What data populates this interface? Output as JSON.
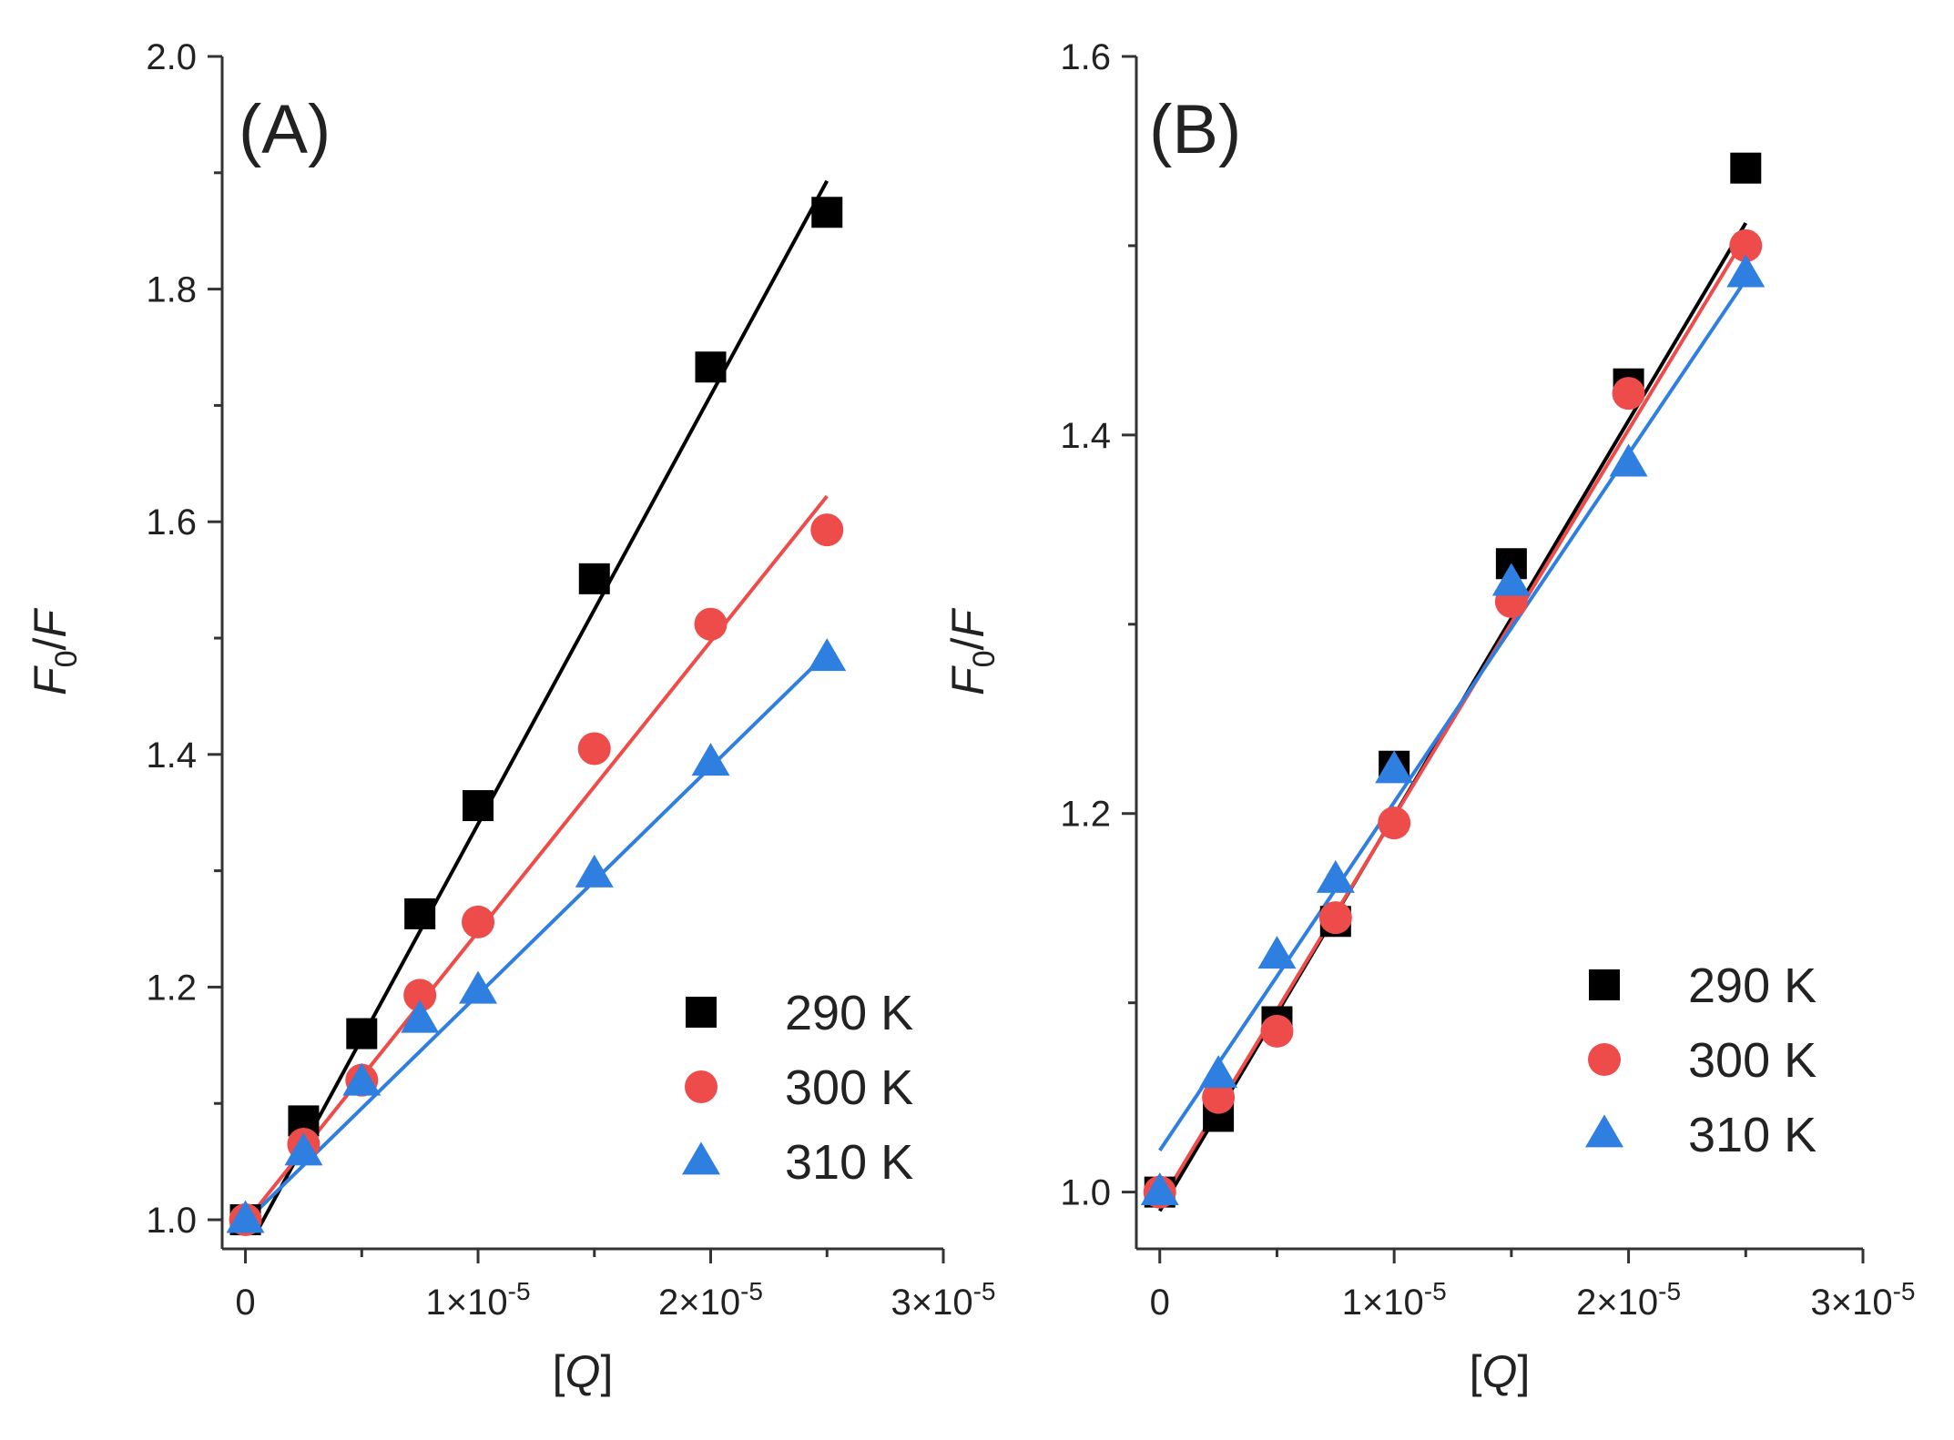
{
  "chart_data": [
    {
      "type": "scatter",
      "panel_label": "(A)",
      "xlabel": "[Q]",
      "ylabel": "F0/F",
      "xlim": [
        -1e-06,
        3e-05
      ],
      "ylim": [
        0.975,
        2.0
      ],
      "xticks": [
        0,
        1e-05,
        2e-05,
        3e-05
      ],
      "xtick_labels": [
        "0",
        "1×10⁻⁵",
        "2×10⁻⁵",
        "3×10⁻⁵"
      ],
      "yticks": [
        1.0,
        1.2,
        1.4,
        1.6,
        1.8,
        2.0
      ],
      "ytick_labels": [
        "1.0",
        "1.2",
        "1.4",
        "1.6",
        "1.8",
        "2.0"
      ],
      "x": [
        0,
        2.5e-06,
        5e-06,
        7.5e-06,
        1e-05,
        1.5e-05,
        2e-05,
        2.5e-05
      ],
      "legend_position": "bottom-right",
      "series": [
        {
          "name": "290 K",
          "marker": "square",
          "color": "#000000",
          "values": [
            1.0,
            1.085,
            1.16,
            1.263,
            1.356,
            1.551,
            1.733,
            1.866
          ],
          "fit": {
            "x": [
              5e-07,
              2.5e-05
            ],
            "y": [
              0.99,
              1.893
            ]
          }
        },
        {
          "name": "300 K",
          "marker": "circle",
          "color": "#ee4b4b",
          "values": [
            1.0,
            1.065,
            1.12,
            1.193,
            1.256,
            1.405,
            1.512,
            1.593
          ],
          "fit": {
            "x": [
              0,
              2.5e-05
            ],
            "y": [
              0.998,
              1.622
            ]
          }
        },
        {
          "name": "310 K",
          "marker": "triangle",
          "color": "#2f7fe0",
          "values": [
            1.0,
            1.058,
            1.118,
            1.172,
            1.197,
            1.297,
            1.393,
            1.483
          ],
          "fit": {
            "x": [
              0,
              2.5e-05
            ],
            "y": [
              0.998,
              1.487
            ]
          }
        }
      ]
    },
    {
      "type": "scatter",
      "panel_label": "(B)",
      "xlabel": "[Q]",
      "ylabel": "F0/F",
      "xlim": [
        -1e-06,
        3e-05
      ],
      "ylim": [
        0.97,
        1.6
      ],
      "xticks": [
        0,
        1e-05,
        2e-05,
        3e-05
      ],
      "xtick_labels": [
        "0",
        "1×10⁻⁵",
        "2×10⁻⁵",
        "3×10⁻⁵"
      ],
      "yticks": [
        1.0,
        1.2,
        1.4,
        1.6
      ],
      "ytick_labels": [
        "1.0",
        "1.2",
        "1.4",
        "1.6"
      ],
      "x": [
        0,
        2.5e-06,
        5e-06,
        7.5e-06,
        1e-05,
        1.5e-05,
        2e-05,
        2.5e-05
      ],
      "legend_position": "bottom-right",
      "series": [
        {
          "name": "290 K",
          "marker": "square",
          "color": "#000000",
          "values": [
            1.0,
            1.04,
            1.09,
            1.143,
            1.225,
            1.332,
            1.427,
            1.541
          ],
          "fit": {
            "x": [
              0,
              2.5e-05
            ],
            "y": [
              0.99,
              1.512
            ]
          }
        },
        {
          "name": "300 K",
          "marker": "circle",
          "color": "#ee4b4b",
          "values": [
            1.0,
            1.05,
            1.085,
            1.145,
            1.195,
            1.312,
            1.422,
            1.5
          ],
          "fit": {
            "x": [
              0,
              2.5e-05
            ],
            "y": [
              0.994,
              1.505
            ]
          }
        },
        {
          "name": "310 K",
          "marker": "triangle",
          "color": "#2f7fe0",
          "values": [
            1.0,
            1.062,
            1.125,
            1.165,
            1.223,
            1.322,
            1.385,
            1.485
          ],
          "fit": {
            "x": [
              0,
              2.5e-05
            ],
            "y": [
              1.022,
              1.482
            ]
          }
        }
      ]
    }
  ]
}
